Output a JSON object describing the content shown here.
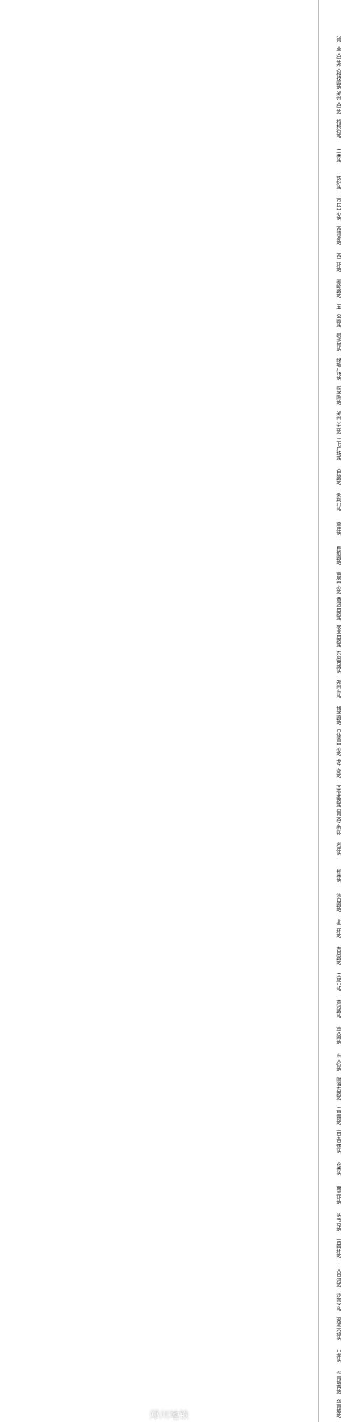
{
  "chart_data": {
    "type": "heatmap",
    "title": "",
    "xlabel": "",
    "ylabel": "",
    "columns": [],
    "rows": [
      "河南工业大学站",
      "郑大科技园站",
      "郑州大学站",
      "梧桐街站",
      "兰寨站",
      "铁炉站",
      "市民中心站",
      "西流湖站",
      "西三环站",
      "秦岭路站",
      "五一公园站",
      "碧沙岗站",
      "绿城广场站",
      "医学院站",
      "郑州火车站",
      "二七广场站",
      "人民路站",
      "紫荆山站",
      "燕庄站",
      "民航路站",
      "会展中心站",
      "黄河南路站",
      "农业南路站",
      "东风南路站",
      "郑州东站",
      "博学路站",
      "市体育中心站",
      "龙子湖站",
      "文苑北路站",
      "河南大学新区站",
      "刘庄站",
      "柳林站",
      "沙口路站",
      "北三环站",
      "东风路站",
      "关虎屯站",
      "黄河路站",
      "金水路站",
      "东大街站",
      "陇海东路站",
      "二里岗站",
      "南五里堡站",
      "花寨站",
      "南三环站",
      "站马屯站",
      "南四环站",
      "十八里河站",
      "沙窝李站",
      "双湖大道站",
      "小乔站",
      "华南城西站",
      "华南城站"
    ],
    "value_range": [],
    "color_scale": {
      "low": "#5fbd6e",
      "low_mid": "#c2dd86",
      "mid": "#f7ec8c",
      "mid_high": "#f5a36e",
      "high": "#ee5f63"
    },
    "cells": []
  },
  "watermark": "郑州地铁"
}
